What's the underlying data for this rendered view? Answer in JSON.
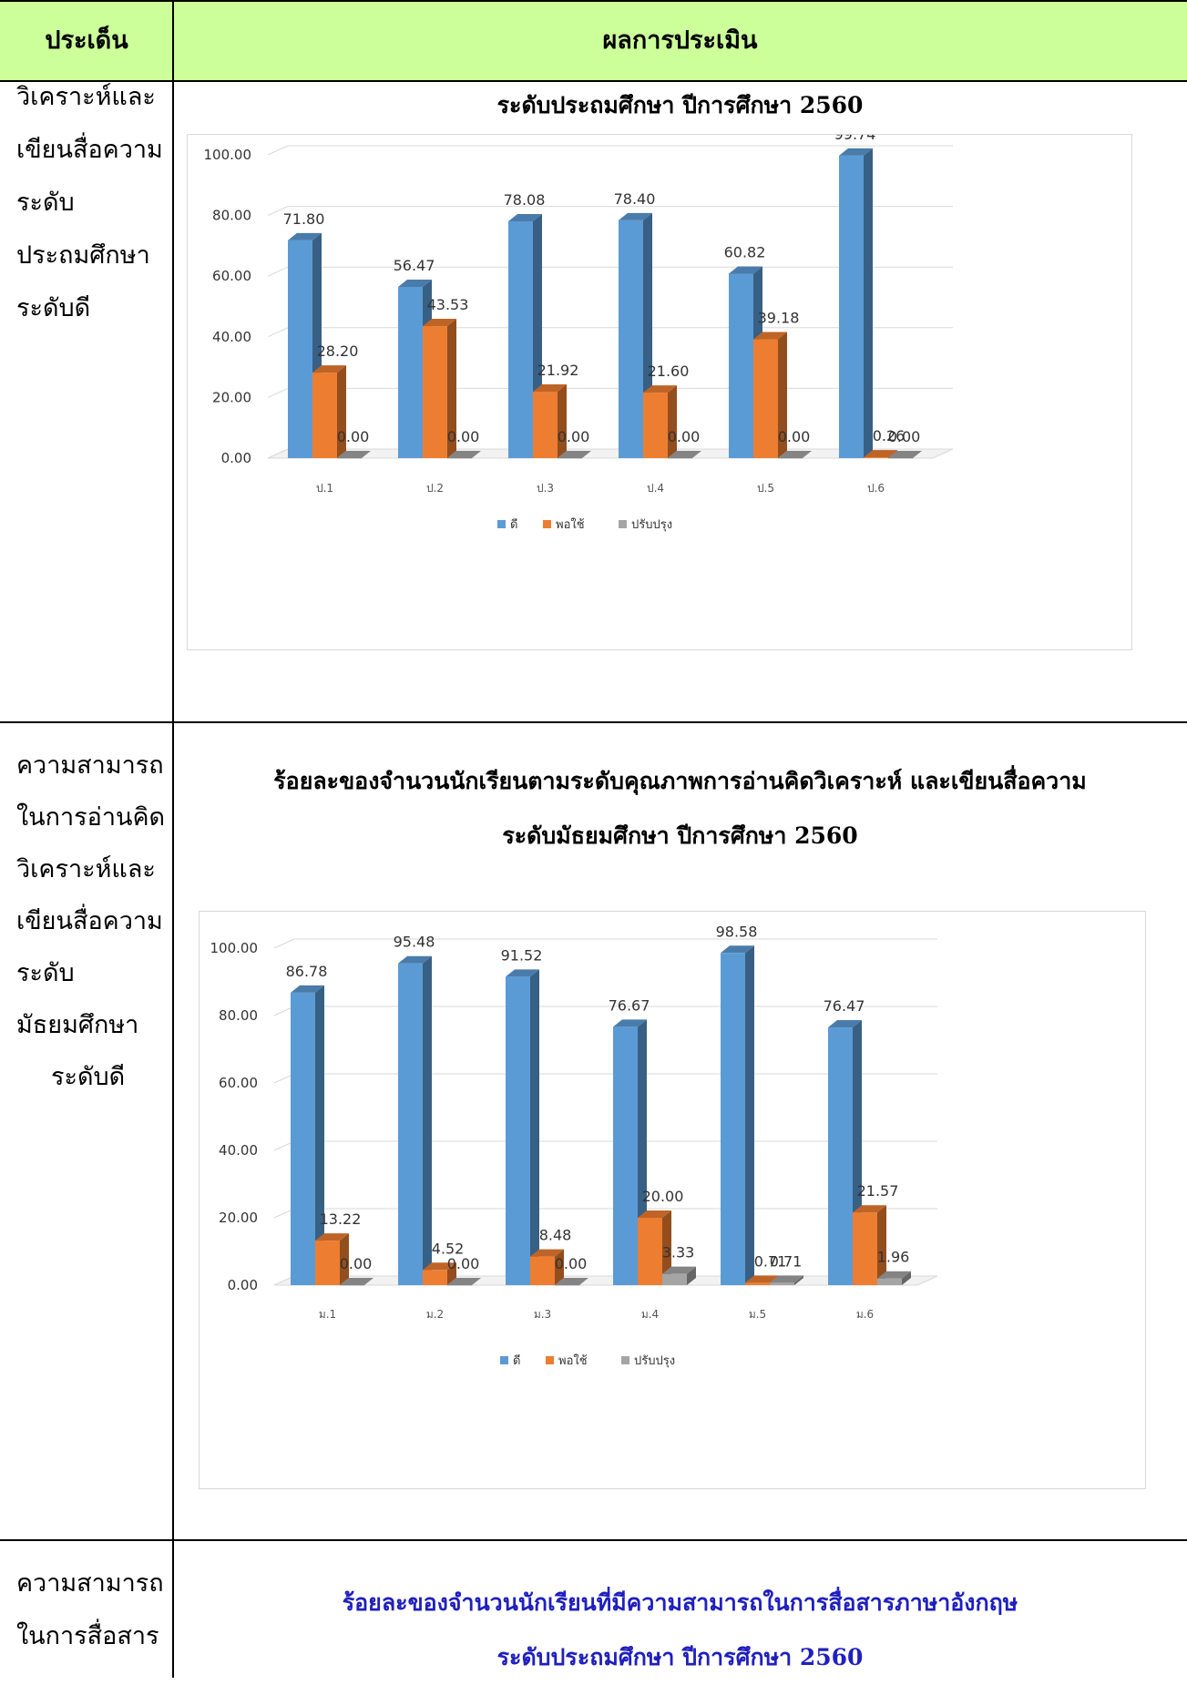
{
  "header": {
    "col1": "ประเด็น",
    "col2": "ผลการประเมิน"
  },
  "rows": [
    {
      "label_lines": [
        "วิเคราะห์และ",
        "เขียนสื่อความ",
        "ระดับ",
        "ประถมศึกษา",
        "ระดับดี"
      ],
      "title_lines": [
        "ระดับประถมศึกษา  ปีการศึกษา 2560"
      ]
    },
    {
      "label_lines": [
        "ความสามารถ",
        "ในการอ่านคิด",
        "วิเคราะห์และ",
        "เขียนสื่อความ",
        "ระดับ",
        "มัธยมศึกษา",
        "ระดับดี"
      ],
      "title_lines": [
        "ร้อยละของจำนวนนักเรียนตามระดับคุณภาพการอ่านคิดวิเคราะห์ และเขียนสื่อความ",
        "ระดับมัธยมศึกษา  ปีการศึกษา 2560"
      ]
    },
    {
      "label_lines": [
        "ความสามารถ",
        "ในการสื่อสาร"
      ],
      "title_lines": [
        "ร้อยละของจำนวนนักเรียนที่มีความสามารถในการสื่อสารภาษาอังกฤษ",
        "ระดับประถมศึกษา  ปีการศึกษา 2560"
      ],
      "title_color": "#1f1fbf"
    }
  ],
  "chart_data": [
    {
      "type": "bar",
      "categories": [
        "ป.1",
        "ป.2",
        "ป.3",
        "ป.4",
        "ป.5",
        "ป.6"
      ],
      "series": [
        {
          "name": "ดี",
          "values": [
            71.8,
            56.47,
            78.08,
            78.4,
            60.82,
            99.74
          ],
          "labels": [
            "71.80",
            "56.47",
            "78.08",
            "78.40",
            "60.82",
            "99.74"
          ],
          "color": "#5b9bd5"
        },
        {
          "name": "พอใช้",
          "values": [
            28.2,
            43.53,
            21.92,
            21.6,
            39.18,
            0.26
          ],
          "labels": [
            "28.20",
            "43.53",
            "21.92",
            "21.60",
            "39.18",
            "0.26"
          ],
          "color": "#ed7d31"
        },
        {
          "name": "ปรับปรุง",
          "values": [
            0.0,
            0.0,
            0.0,
            0.0,
            0.0,
            0.0
          ],
          "labels": [
            "0.00",
            "0.00",
            "0.00",
            "0.00",
            "0.00",
            "0.00"
          ],
          "color": "#a5a5a5"
        }
      ],
      "ylim": [
        0,
        100
      ],
      "yticks": [
        "0.00",
        "20.00",
        "40.00",
        "60.00",
        "80.00",
        "100.00"
      ],
      "grid": true,
      "legend": "bottom"
    },
    {
      "type": "bar",
      "categories": [
        "ม.1",
        "ม.2",
        "ม.3",
        "ม.4",
        "ม.5",
        "ม.6"
      ],
      "series": [
        {
          "name": "ดี",
          "values": [
            86.78,
            95.48,
            91.52,
            76.67,
            98.58,
            76.47
          ],
          "labels": [
            "86.78",
            "95.48",
            "91.52",
            "76.67",
            "98.58",
            "76.47"
          ],
          "color": "#5b9bd5"
        },
        {
          "name": "พอใช้",
          "values": [
            13.22,
            4.52,
            8.48,
            20.0,
            0.71,
            21.57
          ],
          "labels": [
            "13.22",
            "4.52",
            "8.48",
            "20.00",
            "0.71",
            "21.57"
          ],
          "color": "#ed7d31"
        },
        {
          "name": "ปรับปรุง",
          "values": [
            0.0,
            0.0,
            0.0,
            3.33,
            0.71,
            1.96
          ],
          "labels": [
            "0.00",
            "0.00",
            "0.00",
            "3.33",
            "0.71",
            "1.96"
          ],
          "color": "#a5a5a5"
        }
      ],
      "ylim": [
        0,
        100
      ],
      "yticks": [
        "0.00",
        "20.00",
        "40.00",
        "60.00",
        "80.00",
        "100.00"
      ],
      "grid": true,
      "legend": "bottom"
    }
  ]
}
